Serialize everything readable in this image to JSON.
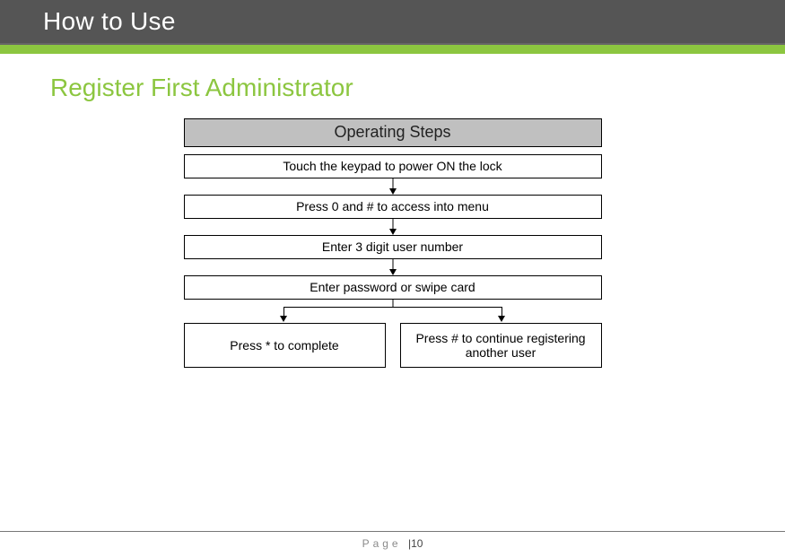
{
  "header": {
    "title": "How to Use",
    "bar_color": "#555555",
    "title_color": "#ffffff",
    "accent_color": "#8cc640"
  },
  "section": {
    "title": "Register First Administrator",
    "title_color": "#8cc640"
  },
  "flowchart": {
    "type": "flowchart",
    "header_label": "Operating Steps",
    "header_bg": "#c0c0c0",
    "box_border_color": "#000000",
    "arrow_color": "#000000",
    "background_color": "#ffffff",
    "font_size_header": 18,
    "font_size_step": 14,
    "steps": [
      {
        "label": "Touch the keypad to power ON the lock"
      },
      {
        "label": "Press  0 and  # to access into menu"
      },
      {
        "label": "Enter 3 digit user number"
      },
      {
        "label": "Enter password or swipe card"
      }
    ],
    "branches": [
      {
        "label": "Press  *  to complete"
      },
      {
        "label": "Press # to continue registering another user"
      }
    ],
    "split_left_percent": 24,
    "split_right_percent": 76
  },
  "footer": {
    "label": "Page",
    "separator": "|",
    "page_number": "10",
    "rule_color": "#777777",
    "text_color": "#8a8a8a"
  }
}
